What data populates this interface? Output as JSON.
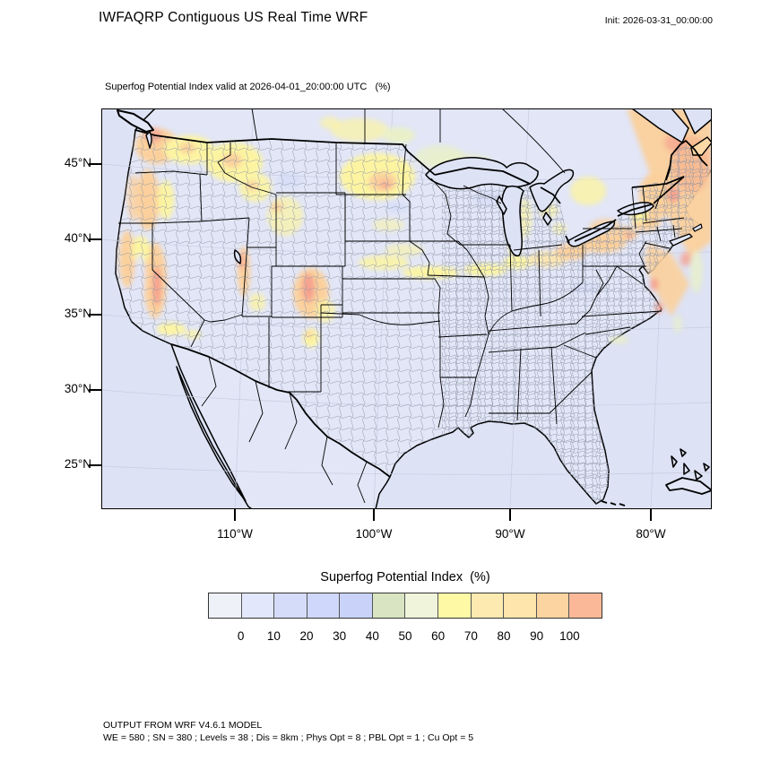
{
  "header": {
    "title": "IWFAQRP Contiguous US Real Time WRF",
    "init_label": "Init: 2026-03-31_00:00:00"
  },
  "map": {
    "subtitle": "Superfog Potential Index valid at 2026-04-01_20:00:00 UTC   (%)",
    "lat_labels": [
      "45°N",
      "40°N",
      "35°N",
      "30°N",
      "25°N"
    ],
    "lon_labels": [
      "110°W",
      "100°W",
      "90°W",
      "80°W"
    ]
  },
  "legend": {
    "title": "Superfog Potential Index  (%)",
    "ticks": [
      "0",
      "10",
      "20",
      "30",
      "40",
      "50",
      "60",
      "70",
      "80",
      "90",
      "100"
    ],
    "colors": [
      "#eef1f8",
      "#e3e7fb",
      "#d5dcfa",
      "#cfd8fa",
      "#c9d3fa",
      "#d8e4c2",
      "#eff4da",
      "#fdf9a5",
      "#fdeab0",
      "#fde5ab",
      "#fcd4a1",
      "#fab898"
    ]
  },
  "footer": {
    "line1": "OUTPUT FROM WRF V4.6.1 MODEL",
    "line2": "WE = 580 ; SN = 380 ; Levels = 38 ; Dis = 8km ; Phys Opt = 8 ; PBL Opt = 1 ; Cu Opt = 5"
  },
  "colors": {
    "ocean": "#dde2f5",
    "land": "#e2e6f7",
    "county_line": "#939aab",
    "graticule": "#c7ccdf",
    "yellow": "#fcf4a1",
    "pale_green": "#e9f0c8",
    "orange": "#fbd09c",
    "deep_orange": "#f8b690",
    "salmon": "#f5a18e",
    "pale_blue": "#cdd7f8"
  }
}
